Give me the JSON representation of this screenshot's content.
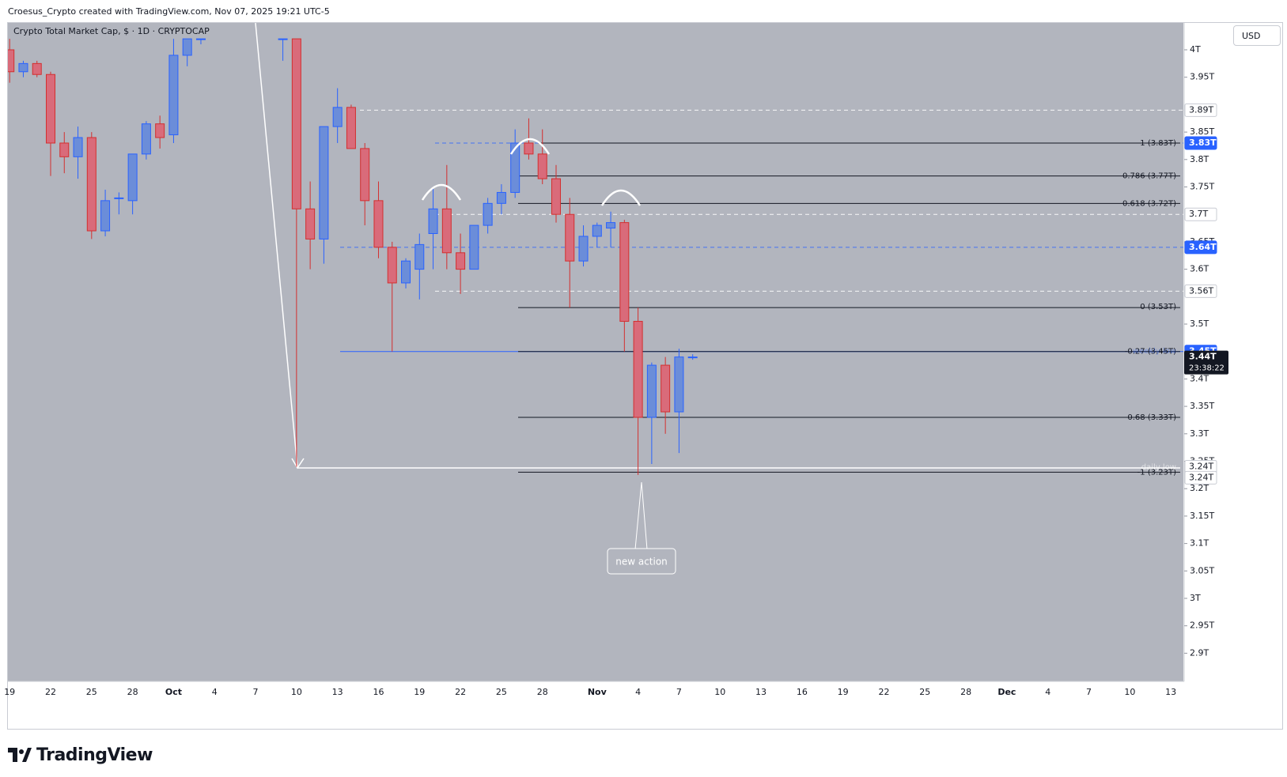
{
  "header": {
    "attribution": "Croesus_Crypto created with TradingView.com, Nov 07, 2025 19:21 UTC-5"
  },
  "symbol_title": "Crypto Total Market Cap, $ · 1D · CRYPTOCAP",
  "currency_button": "USD",
  "footer": {
    "brand": "TradingView"
  },
  "colors": {
    "chart_bg": "#b2b5be",
    "bull": "#6b8dd9",
    "bear": "#d96b7a",
    "blue_accent": "#2962ff",
    "label_dark": "#131722"
  },
  "chart_data": {
    "type": "candlestick",
    "title": "Crypto Total Market Cap, $ · 1D · CRYPTOCAP",
    "ylim": [
      2.87,
      4.02
    ],
    "y_ticks": [
      {
        "value": 4.0,
        "label": "4T"
      },
      {
        "value": 3.95,
        "label": "3.95T"
      },
      {
        "value": 3.85,
        "label": "3.85T"
      },
      {
        "value": 3.8,
        "label": "3.8T"
      },
      {
        "value": 3.75,
        "label": "3.75T"
      },
      {
        "value": 3.65,
        "label": "3.65T"
      },
      {
        "value": 3.6,
        "label": "3.6T"
      },
      {
        "value": 3.5,
        "label": "3.5T"
      },
      {
        "value": 3.4,
        "label": "3.4T"
      },
      {
        "value": 3.35,
        "label": "3.35T"
      },
      {
        "value": 3.3,
        "label": "3.3T"
      },
      {
        "value": 3.25,
        "label": "3.25T"
      },
      {
        "value": 3.2,
        "label": "3.2T"
      },
      {
        "value": 3.15,
        "label": "3.15T"
      },
      {
        "value": 3.1,
        "label": "3.1T"
      },
      {
        "value": 3.05,
        "label": "3.05T"
      },
      {
        "value": 3.0,
        "label": "3T"
      },
      {
        "value": 2.95,
        "label": "2.95T"
      },
      {
        "value": 2.9,
        "label": "2.9T"
      }
    ],
    "x_ticks": [
      {
        "day": -1,
        "label": "19"
      },
      {
        "day": 2,
        "label": "22"
      },
      {
        "day": 5,
        "label": "25"
      },
      {
        "day": 8,
        "label": "28"
      },
      {
        "day": 11,
        "label": "Oct"
      },
      {
        "day": 14,
        "label": "4"
      },
      {
        "day": 17,
        "label": "7"
      },
      {
        "day": 20,
        "label": "10"
      },
      {
        "day": 23,
        "label": "13"
      },
      {
        "day": 26,
        "label": "16"
      },
      {
        "day": 29,
        "label": "19"
      },
      {
        "day": 32,
        "label": "22"
      },
      {
        "day": 35,
        "label": "25"
      },
      {
        "day": 38,
        "label": "28"
      },
      {
        "day": 42,
        "label": "Nov"
      },
      {
        "day": 45,
        "label": "4"
      },
      {
        "day": 48,
        "label": "7"
      },
      {
        "day": 51,
        "label": "10"
      },
      {
        "day": 54,
        "label": "13"
      },
      {
        "day": 57,
        "label": "16"
      },
      {
        "day": 60,
        "label": "19"
      },
      {
        "day": 63,
        "label": "22"
      },
      {
        "day": 66,
        "label": "25"
      },
      {
        "day": 69,
        "label": "28"
      },
      {
        "day": 72,
        "label": "Dec"
      },
      {
        "day": 75,
        "label": "4"
      },
      {
        "day": 78,
        "label": "7"
      },
      {
        "day": 81,
        "label": "10"
      },
      {
        "day": 84,
        "label": "13"
      }
    ],
    "candles": [
      {
        "day": -1,
        "o": 4.0,
        "h": 4.02,
        "l": 3.94,
        "c": 3.96
      },
      {
        "day": 0,
        "o": 3.96,
        "h": 3.98,
        "l": 3.95,
        "c": 3.975
      },
      {
        "day": 1,
        "o": 3.975,
        "h": 3.98,
        "l": 3.95,
        "c": 3.955
      },
      {
        "day": 2,
        "o": 3.955,
        "h": 3.96,
        "l": 3.77,
        "c": 3.83
      },
      {
        "day": 3,
        "o": 3.83,
        "h": 3.85,
        "l": 3.775,
        "c": 3.805
      },
      {
        "day": 4,
        "o": 3.805,
        "h": 3.86,
        "l": 3.765,
        "c": 3.84
      },
      {
        "day": 5,
        "o": 3.84,
        "h": 3.85,
        "l": 3.655,
        "c": 3.67
      },
      {
        "day": 6,
        "o": 3.67,
        "h": 3.745,
        "l": 3.66,
        "c": 3.725
      },
      {
        "day": 7,
        "o": 3.73,
        "h": 3.74,
        "l": 3.7,
        "c": 3.73
      },
      {
        "day": 8,
        "o": 3.725,
        "h": 3.81,
        "l": 3.7,
        "c": 3.81
      },
      {
        "day": 9,
        "o": 3.81,
        "h": 3.87,
        "l": 3.8,
        "c": 3.865
      },
      {
        "day": 10,
        "o": 3.865,
        "h": 3.88,
        "l": 3.82,
        "c": 3.84
      },
      {
        "day": 11,
        "o": 3.845,
        "h": 4.02,
        "l": 3.83,
        "c": 3.99
      },
      {
        "day": 12,
        "o": 3.99,
        "h": 4.02,
        "l": 3.97,
        "c": 4.02
      },
      {
        "day": 13,
        "o": 4.02,
        "h": 4.02,
        "l": 4.01,
        "c": 4.02
      },
      {
        "day": 19,
        "o": 4.02,
        "h": 4.02,
        "l": 3.98,
        "c": 4.02
      },
      {
        "day": 20,
        "o": 4.02,
        "h": 4.02,
        "l": 3.24,
        "c": 3.71
      },
      {
        "day": 21,
        "o": 3.71,
        "h": 3.76,
        "l": 3.6,
        "c": 3.655
      },
      {
        "day": 22,
        "o": 3.655,
        "h": 3.86,
        "l": 3.61,
        "c": 3.86
      },
      {
        "day": 23,
        "o": 3.86,
        "h": 3.93,
        "l": 3.83,
        "c": 3.895
      },
      {
        "day": 24,
        "o": 3.895,
        "h": 3.9,
        "l": 3.82,
        "c": 3.82
      },
      {
        "day": 25,
        "o": 3.82,
        "h": 3.83,
        "l": 3.68,
        "c": 3.725
      },
      {
        "day": 26,
        "o": 3.725,
        "h": 3.76,
        "l": 3.62,
        "c": 3.64
      },
      {
        "day": 27,
        "o": 3.64,
        "h": 3.65,
        "l": 3.45,
        "c": 3.575
      },
      {
        "day": 28,
        "o": 3.575,
        "h": 3.62,
        "l": 3.565,
        "c": 3.615
      },
      {
        "day": 29,
        "o": 3.6,
        "h": 3.665,
        "l": 3.545,
        "c": 3.645
      },
      {
        "day": 30,
        "o": 3.665,
        "h": 3.75,
        "l": 3.6,
        "c": 3.71
      },
      {
        "day": 31,
        "o": 3.71,
        "h": 3.79,
        "l": 3.6,
        "c": 3.63
      },
      {
        "day": 32,
        "o": 3.63,
        "h": 3.665,
        "l": 3.555,
        "c": 3.6
      },
      {
        "day": 33,
        "o": 3.6,
        "h": 3.68,
        "l": 3.6,
        "c": 3.68
      },
      {
        "day": 34,
        "o": 3.68,
        "h": 3.73,
        "l": 3.665,
        "c": 3.72
      },
      {
        "day": 35,
        "o": 3.72,
        "h": 3.755,
        "l": 3.7,
        "c": 3.74
      },
      {
        "day": 36,
        "o": 3.74,
        "h": 3.855,
        "l": 3.73,
        "c": 3.83
      },
      {
        "day": 37,
        "o": 3.83,
        "h": 3.875,
        "l": 3.8,
        "c": 3.81
      },
      {
        "day": 38,
        "o": 3.81,
        "h": 3.855,
        "l": 3.755,
        "c": 3.765
      },
      {
        "day": 39,
        "o": 3.765,
        "h": 3.79,
        "l": 3.685,
        "c": 3.7
      },
      {
        "day": 40,
        "o": 3.7,
        "h": 3.73,
        "l": 3.53,
        "c": 3.615
      },
      {
        "day": 41,
        "o": 3.615,
        "h": 3.68,
        "l": 3.605,
        "c": 3.66
      },
      {
        "day": 42,
        "o": 3.66,
        "h": 3.685,
        "l": 3.64,
        "c": 3.68
      },
      {
        "day": 43,
        "o": 3.675,
        "h": 3.705,
        "l": 3.64,
        "c": 3.685
      },
      {
        "day": 44,
        "o": 3.685,
        "h": 3.69,
        "l": 3.45,
        "c": 3.505
      },
      {
        "day": 45,
        "o": 3.505,
        "h": 3.53,
        "l": 3.225,
        "c": 3.33
      },
      {
        "day": 46,
        "o": 3.33,
        "h": 3.43,
        "l": 3.245,
        "c": 3.425
      },
      {
        "day": 47,
        "o": 3.425,
        "h": 3.44,
        "l": 3.3,
        "c": 3.34
      },
      {
        "day": 48,
        "o": 3.34,
        "h": 3.455,
        "l": 3.265,
        "c": 3.44
      },
      {
        "day": 49,
        "o": 3.44,
        "h": 3.445,
        "l": 3.435,
        "c": 3.44
      }
    ],
    "fib_levels": [
      {
        "ratio": "1",
        "value": 3.83,
        "label": "1 (3.83T)"
      },
      {
        "ratio": "0.786",
        "value": 3.77,
        "label": "0.786 (3.77T)"
      },
      {
        "ratio": "0.618",
        "value": 3.72,
        "label": "0.618 (3.72T)"
      },
      {
        "ratio": "0",
        "value": 3.53,
        "label": "0 (3.53T)"
      },
      {
        "ratio": "-0.27",
        "value": 3.45,
        "label": "-0.27 (3.45T)"
      },
      {
        "ratio": "-0.68",
        "value": 3.33,
        "label": "-0.68 (3.33T)"
      },
      {
        "ratio": "-1",
        "value": 3.23,
        "label": "-1 (3.23T)"
      }
    ],
    "dashed_levels": [
      {
        "value": 3.89,
        "color": "white"
      },
      {
        "value": 3.7,
        "color": "white"
      },
      {
        "value": 3.56,
        "color": "white"
      },
      {
        "value": 3.83,
        "color": "blue"
      },
      {
        "value": 3.64,
        "color": "blue"
      }
    ],
    "price_badges": [
      {
        "value": 3.89,
        "label": "3.89T",
        "style": "white"
      },
      {
        "value": 3.83,
        "label": "3.83T",
        "style": "blue"
      },
      {
        "value": 3.7,
        "label": "3.7T",
        "style": "white"
      },
      {
        "value": 3.64,
        "label": "3.64T",
        "style": "blue"
      },
      {
        "value": 3.56,
        "label": "3.56T",
        "style": "white"
      },
      {
        "value": 3.45,
        "label": "3.45T",
        "style": "blue"
      },
      {
        "value": 3.24,
        "label": "3.24T",
        "style": "white"
      },
      {
        "value": 3.22,
        "label": "3.24T",
        "style": "white"
      }
    ],
    "current_price": {
      "value": 3.44,
      "label": "3.44T",
      "countdown": "23:38:22"
    },
    "annotations": {
      "callout": "new action",
      "faded_label_daily": "daily low",
      "faded_label_weekly": "weekly low"
    }
  }
}
